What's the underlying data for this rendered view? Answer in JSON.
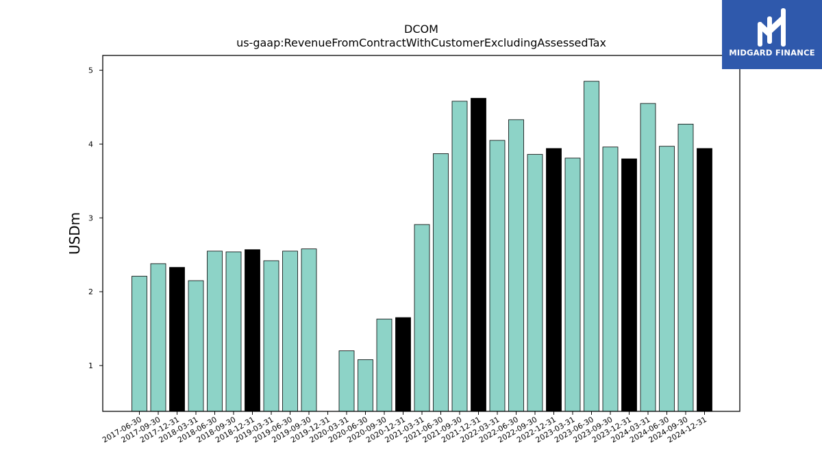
{
  "chart_data": {
    "type": "bar",
    "title": "DCOM",
    "subtitle": "us-gaap:RevenueFromContractWithCustomerExcludingAssessedTax",
    "xlabel": "",
    "ylabel": "USDm",
    "ylim": [
      0.38,
      5.2
    ],
    "yticks": [
      1,
      2,
      3,
      4,
      5
    ],
    "grid": false,
    "categories": [
      "2017-06-30",
      "2017-09-30",
      "2017-12-31",
      "2018-03-31",
      "2018-06-30",
      "2018-09-30",
      "2018-12-31",
      "2019-03-31",
      "2019-06-30",
      "2019-09-30",
      "2019-12-31",
      "2020-03-31",
      "2020-06-30",
      "2020-09-30",
      "2020-12-31",
      "2021-03-31",
      "2021-06-30",
      "2021-09-30",
      "2021-12-31",
      "2022-03-31",
      "2022-06-30",
      "2022-09-30",
      "2022-12-31",
      "2023-03-31",
      "2023-06-30",
      "2023-09-30",
      "2023-12-31",
      "2024-03-31",
      "2024-06-30",
      "2024-09-30",
      "2024-12-31"
    ],
    "values": [
      2.21,
      2.38,
      2.33,
      2.15,
      2.55,
      2.54,
      2.57,
      2.42,
      2.55,
      2.58,
      null,
      1.2,
      1.08,
      1.63,
      1.65,
      2.91,
      3.87,
      4.58,
      4.62,
      4.05,
      4.33,
      3.86,
      3.94,
      3.81,
      4.85,
      3.96,
      3.8,
      4.55,
      3.97,
      4.27,
      3.94
    ],
    "colors": {
      "quarter": "#8dd3c7",
      "year_end": "#000000"
    }
  },
  "logo": {
    "text": "MIDGARD FINANCE",
    "color": "#2f59ac"
  }
}
